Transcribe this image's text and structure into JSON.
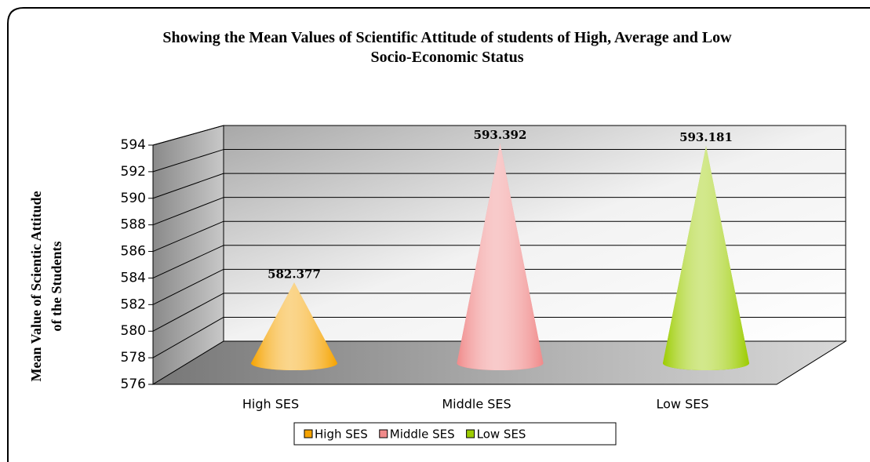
{
  "chart_data": {
    "type": "cone",
    "title": "Showing the Mean Values of Scientific Attitude of students of High, Average and Low Socio-Economic Status",
    "ylabel": [
      "Mean Value of Scientic Attitude",
      "of the Students"
    ],
    "categories": [
      "High SES",
      "Middle SES",
      "Low SES"
    ],
    "values": [
      582.377,
      593.392,
      593.181
    ],
    "colors": [
      "#f5a300",
      "#f08a8a",
      "#9ccc00"
    ],
    "ylim": [
      576,
      594
    ],
    "yticks": [
      576,
      578,
      580,
      582,
      584,
      586,
      588,
      590,
      592,
      594
    ],
    "grid": true,
    "legend": "bottom"
  }
}
